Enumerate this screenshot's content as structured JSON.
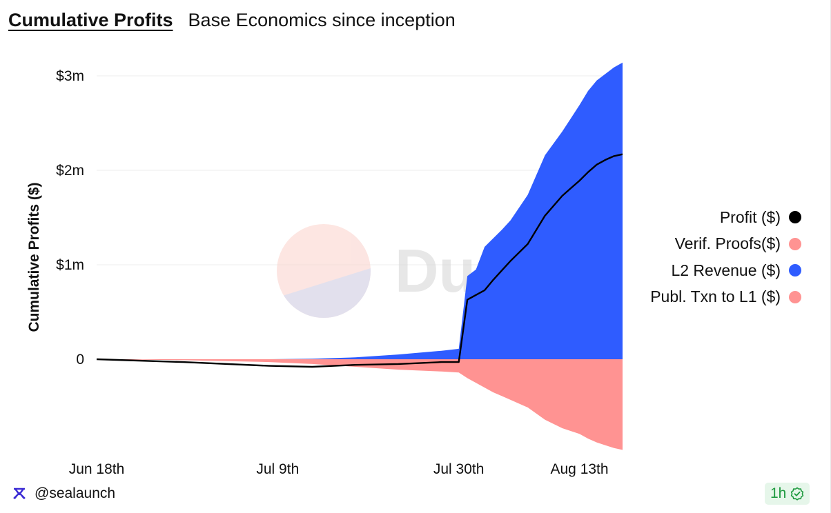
{
  "header": {
    "title": "Cumulative Profits",
    "subtitle": "Base Economics since inception"
  },
  "watermark": {
    "text": "Dune"
  },
  "footer": {
    "handle": "@sealaunch",
    "badge": "1h"
  },
  "colors": {
    "profit": "#000000",
    "verif_proofs": "#ff9392",
    "l2_revenue": "#2f5cff",
    "publ_txn": "#ff9392",
    "badge_text": "#1e9a3f",
    "brand": "#3b2bd4"
  },
  "chart_data": {
    "type": "area",
    "title": "Cumulative Profits",
    "ylabel": "Cumulative Profits ($)",
    "xlabel": "",
    "ylim": [
      -0.95,
      3.15
    ],
    "yunit": "$m",
    "yticks": [
      {
        "value": 0,
        "label": "0"
      },
      {
        "value": 1,
        "label": "$1m"
      },
      {
        "value": 2,
        "label": "$2m"
      },
      {
        "value": 3,
        "label": "$3m"
      }
    ],
    "xticks": [
      {
        "day": 0,
        "label": "Jun 18th"
      },
      {
        "day": 21,
        "label": "Jul 9th"
      },
      {
        "day": 42,
        "label": "Jul 30th"
      },
      {
        "day": 56,
        "label": "Aug 13th"
      }
    ],
    "x": [
      0,
      10,
      20,
      25,
      30,
      35,
      40,
      42,
      43,
      44,
      45,
      46,
      47,
      48,
      50,
      52,
      54,
      55,
      56,
      57,
      58,
      59,
      60,
      61
    ],
    "series": [
      {
        "name": "Profit ($)",
        "values": [
          0,
          -0.03,
          -0.07,
          -0.08,
          -0.06,
          -0.05,
          -0.03,
          -0.03,
          0.63,
          0.68,
          0.73,
          0.84,
          0.94,
          1.04,
          1.22,
          1.52,
          1.73,
          1.81,
          1.89,
          1.98,
          2.06,
          2.11,
          2.15,
          2.17
        ]
      },
      {
        "name": "Verif. Proofs($)",
        "values": [
          0,
          0,
          0,
          0,
          0,
          0,
          0,
          0,
          0,
          0,
          0,
          0,
          0,
          0,
          0,
          0,
          0,
          0,
          0,
          0,
          0,
          0,
          0,
          0
        ]
      },
      {
        "name": "L2 Revenue ($)",
        "values": [
          0,
          0,
          0,
          0.005,
          0.02,
          0.05,
          0.09,
          0.11,
          0.88,
          0.95,
          1.19,
          1.28,
          1.37,
          1.47,
          1.74,
          2.16,
          2.41,
          2.55,
          2.69,
          2.84,
          2.95,
          3.02,
          3.09,
          3.14
        ]
      },
      {
        "name": "Publ. Txn to L1 ($)",
        "values": [
          0,
          -0.01,
          -0.03,
          -0.05,
          -0.08,
          -0.11,
          -0.13,
          -0.14,
          -0.2,
          -0.25,
          -0.3,
          -0.35,
          -0.39,
          -0.43,
          -0.51,
          -0.64,
          -0.73,
          -0.76,
          -0.79,
          -0.84,
          -0.88,
          -0.91,
          -0.94,
          -0.96
        ]
      }
    ],
    "legend_position": "right"
  }
}
